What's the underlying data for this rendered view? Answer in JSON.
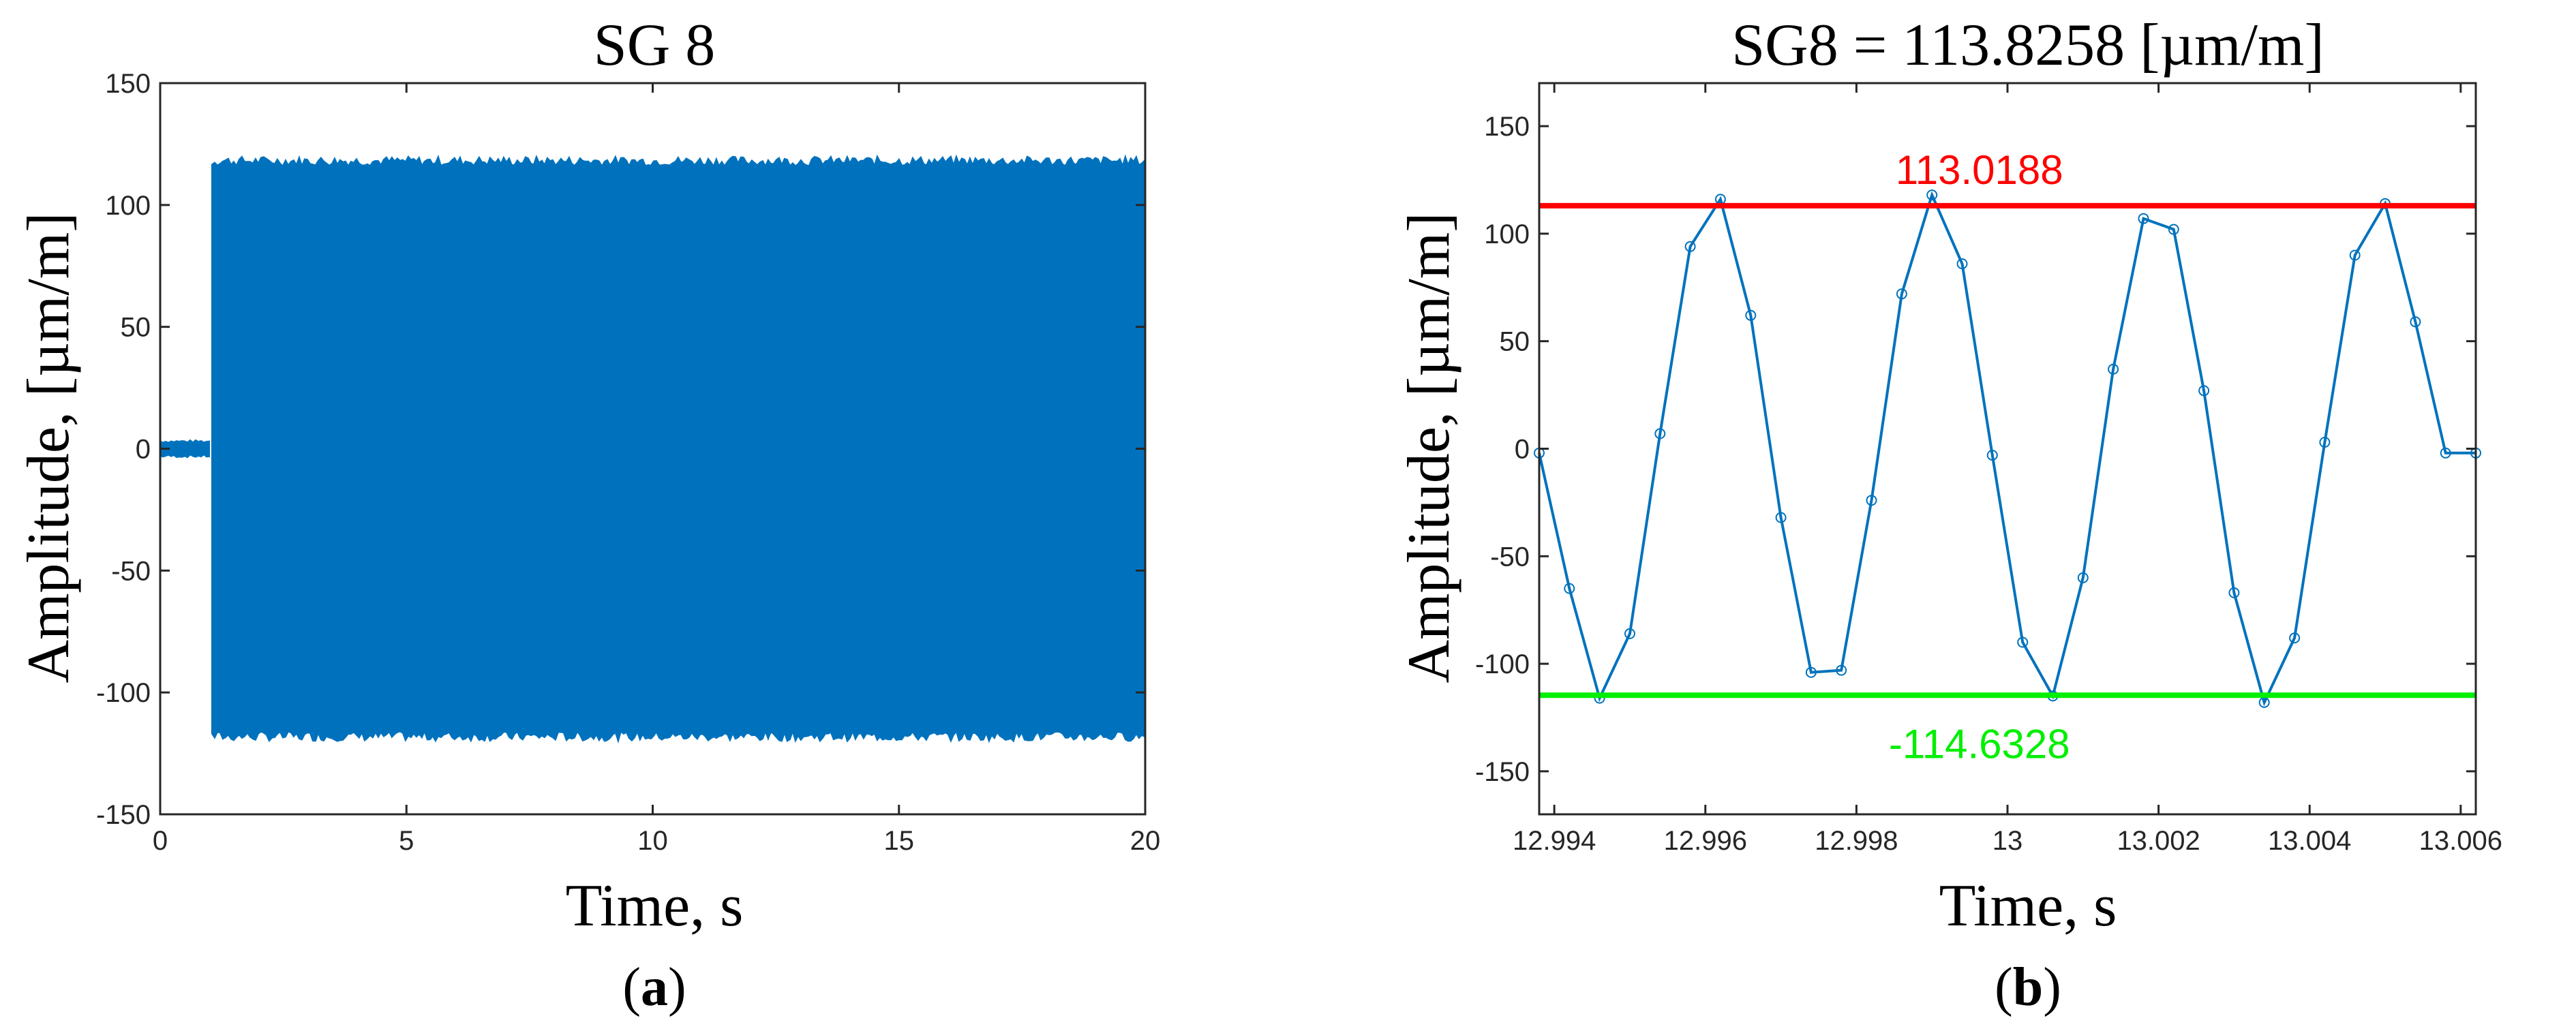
{
  "chart_data": [
    {
      "type": "line",
      "title": "SG 8",
      "xlabel": "Time, s",
      "ylabel": "Amplitude, [µm/m]",
      "xlim": [
        0,
        20
      ],
      "ylim": [
        -150,
        150
      ],
      "xticks": [
        0,
        5,
        10,
        15,
        20
      ],
      "yticks": [
        -150,
        -100,
        -50,
        0,
        50,
        100,
        150
      ],
      "grid": false,
      "series_color": "#0072BD",
      "segments": [
        {
          "x_start": 0,
          "x_end": 1.05,
          "envelope_min": -3,
          "envelope_max": 3
        },
        {
          "x_start": 1.05,
          "x_end": 20,
          "envelope_min": -118,
          "envelope_max": 118
        }
      ],
      "panel_label": "a"
    },
    {
      "type": "line",
      "title": "SG8 = 113.8258 [µm/m]",
      "xlabel": "Time, s",
      "ylabel": "Amplitude, [µm/m]",
      "xlim": [
        12.9938,
        13.0062
      ],
      "ylim": [
        -170,
        170
      ],
      "xticks": [
        12.994,
        12.996,
        12.998,
        13,
        13.002,
        13.004,
        13.006
      ],
      "xtick_labels": [
        "12.994",
        "12.996",
        "12.998",
        "13",
        "13.002",
        "13.004",
        "13.006"
      ],
      "yticks": [
        -150,
        -100,
        -50,
        0,
        50,
        100,
        150
      ],
      "grid": false,
      "series_color": "#0072BD",
      "x": [
        12.9938,
        12.9942,
        12.9946,
        12.995,
        12.9954,
        12.9958,
        12.9962,
        12.9966,
        12.997,
        12.9974,
        12.9978,
        12.9982,
        12.9986,
        12.999,
        12.9994,
        12.9998,
        13.0002,
        13.0006,
        13.001,
        13.0014,
        13.0018,
        13.0022,
        13.0026,
        13.003,
        13.0034,
        13.0038,
        13.0042,
        13.0046,
        13.005,
        13.0054,
        13.0058,
        13.0062
      ],
      "y": [
        -2,
        -65,
        -116,
        -86,
        7,
        94,
        116,
        62,
        -32,
        -104,
        -103,
        -24,
        72,
        118,
        86,
        -3,
        -90,
        -115,
        -60,
        37,
        107,
        102,
        27,
        -67,
        -118,
        -88,
        3,
        90,
        114,
        59,
        -2,
        -2
      ],
      "reference_lines": [
        {
          "value": 113.0188,
          "label": "113.0188",
          "color": "#FF0000"
        },
        {
          "value": -114.6328,
          "label": "-114.6328",
          "color": "#00EE00"
        }
      ],
      "panel_label": "b"
    }
  ]
}
